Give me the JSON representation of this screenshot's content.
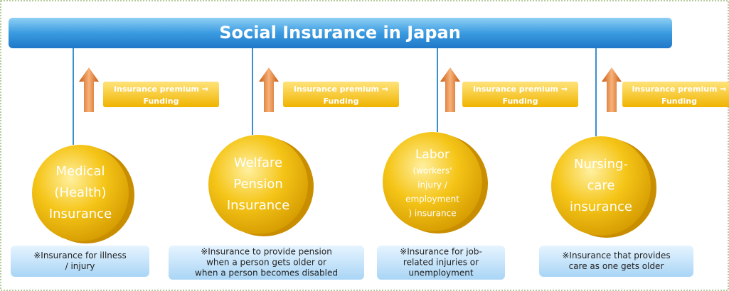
{
  "title": "Social Insurance in Japan",
  "columns": [
    {
      "premium": [
        "Insurance premium ⇒",
        "Funding"
      ],
      "coin": [
        "Medical",
        "(Health)",
        "Insurance"
      ],
      "note": [
        "※Insurance for illness",
        "/ injury"
      ]
    },
    {
      "premium": [
        "Insurance premium ⇒",
        "Funding"
      ],
      "coin": [
        "Welfare",
        "Pension",
        "Insurance"
      ],
      "note": [
        "※Insurance to provide pension",
        "when a person gets older or",
        "when a person becomes disabled"
      ]
    },
    {
      "premium": [
        "Insurance premium ⇒",
        "Funding"
      ],
      "coin": [
        "Labor",
        "(workers'",
        "injury /",
        "employment",
        ") insurance"
      ],
      "note": [
        "※Insurance for job-",
        "related injuries or",
        "unemployment"
      ]
    },
    {
      "premium": [
        "Insurance premium ⇒",
        "Funding"
      ],
      "coin": [
        "Nursing-",
        "care",
        "insurance"
      ],
      "note": [
        "※Insurance that provides",
        "care as one gets older"
      ]
    }
  ]
}
